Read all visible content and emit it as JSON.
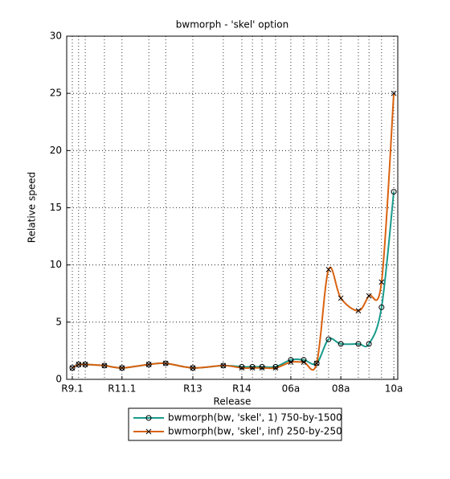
{
  "chart_data": {
    "type": "line",
    "title": "bwmorph - 'skel' option",
    "x_label": "Release",
    "y_label": "Relative speed",
    "x": [
      1.7,
      3.6,
      5.6,
      11.4,
      16.7,
      24.8,
      29.9,
      38.1,
      47.3,
      52.9,
      56.1,
      59.0,
      63.1,
      67.7,
      71.6,
      75.5,
      79.1,
      82.8,
      88.1,
      91.3,
      95.1,
      98.8
    ],
    "series": [
      {
        "name": "bwmorph(bw, 'skel', 1)  750-by-1500",
        "color": "#1a9b8c",
        "marker": "o",
        "values": [
          1.0,
          1.3,
          1.3,
          1.2,
          1.0,
          1.3,
          1.4,
          1.0,
          1.2,
          1.1,
          1.1,
          1.1,
          1.1,
          1.7,
          1.7,
          1.4,
          3.5,
          3.1,
          3.1,
          3.1,
          6.3,
          16.4
        ]
      },
      {
        "name": "bwmorph(bw, 'skel', inf)  250-by-250",
        "color": "#d9620f",
        "marker": "x",
        "values": [
          1.0,
          1.3,
          1.3,
          1.2,
          1.0,
          1.3,
          1.4,
          1.0,
          1.2,
          1.0,
          1.0,
          1.0,
          1.0,
          1.5,
          1.5,
          1.4,
          9.6,
          7.1,
          6.0,
          7.3,
          8.5,
          25.0
        ]
      }
    ],
    "xlim": [
      0,
      100
    ],
    "xticks": [
      {
        "value": 1.7,
        "label": "R9.1"
      },
      {
        "value": 16.7,
        "label": "R11.1"
      },
      {
        "value": 38.1,
        "label": "R13"
      },
      {
        "value": 52.9,
        "label": "R14"
      },
      {
        "value": 67.7,
        "label": "06a"
      },
      {
        "value": 82.8,
        "label": "08a"
      },
      {
        "value": 98.8,
        "label": "10a"
      }
    ],
    "ylim": [
      0,
      30
    ],
    "yticks": [
      0,
      5,
      10,
      15,
      20,
      25,
      30
    ],
    "grid": true,
    "legend": "below"
  }
}
